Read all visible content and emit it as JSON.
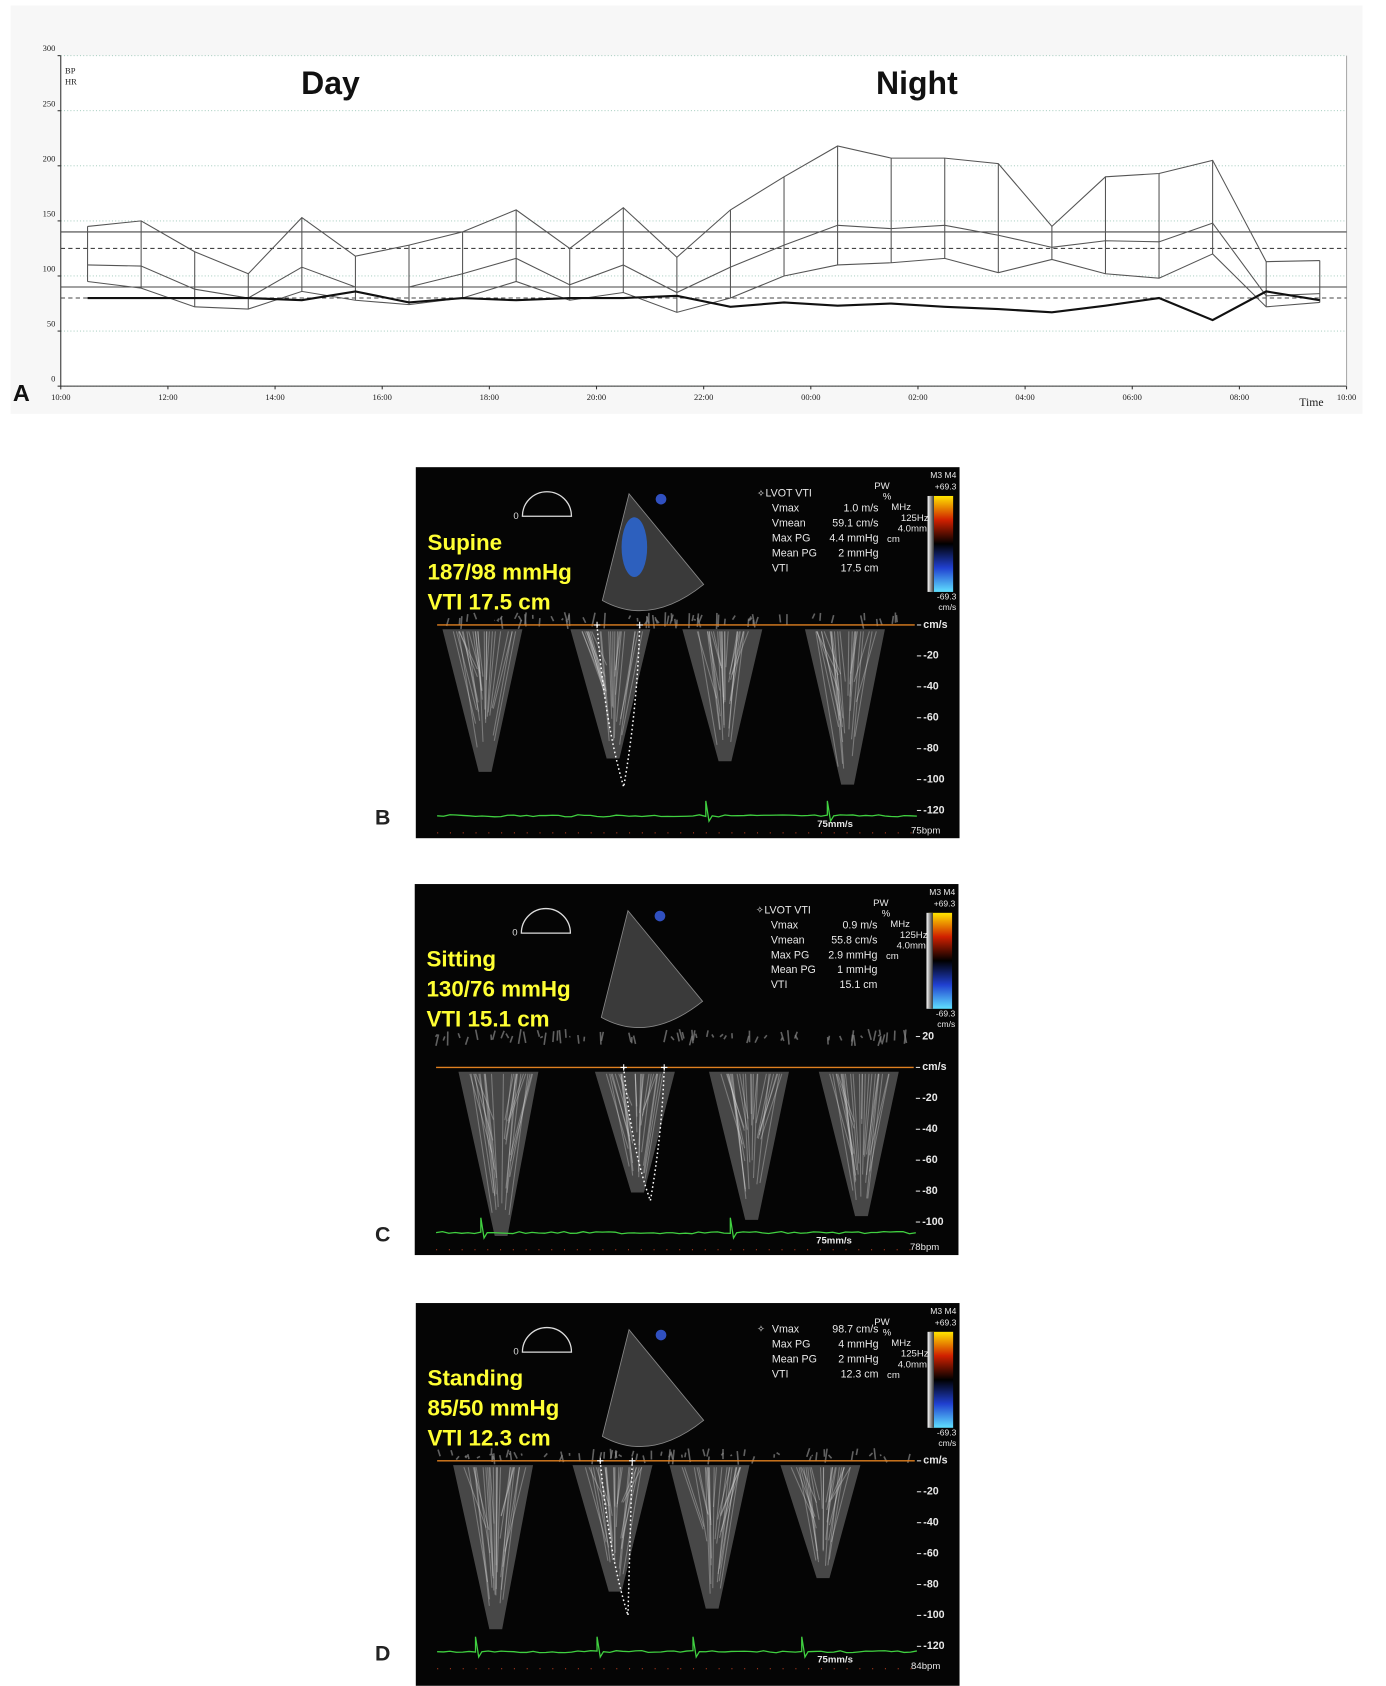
{
  "chart_data": {
    "type": "line",
    "panel_label": "A",
    "annotations": [
      "Day",
      "Night"
    ],
    "y_label": [
      "BP",
      "HR"
    ],
    "x_label": "Time",
    "x": [
      10.5,
      11.5,
      12.5,
      13.5,
      14.5,
      15.5,
      16.5,
      17.5,
      18.5,
      19.5,
      20.5,
      21.5,
      22.5,
      23.5,
      24.5,
      25.5,
      26.5,
      27.5,
      28.5,
      29.5,
      30.5,
      31.5,
      32.5,
      33.5
    ],
    "series": [
      {
        "color": "#555555",
        "line_width": 1,
        "values": [
          145,
          150,
          122,
          102,
          153,
          118,
          128,
          140,
          160,
          125,
          162,
          117,
          160,
          190,
          218,
          207,
          207,
          202,
          145,
          190,
          193,
          205,
          113,
          114
        ]
      },
      {
        "color": "#555555",
        "line_width": 1,
        "values": [
          110,
          109,
          88,
          80,
          108,
          90,
          90,
          102,
          116,
          92,
          110,
          85,
          108,
          128,
          146,
          143,
          146,
          137,
          126,
          132,
          131,
          148,
          82,
          84
        ]
      },
      {
        "color": "#555555",
        "line_width": 1,
        "values": [
          95,
          89,
          72,
          70,
          86,
          78,
          74,
          80,
          95,
          78,
          85,
          67,
          80,
          100,
          110,
          112,
          116,
          103,
          115,
          102,
          98,
          120,
          72,
          76
        ]
      },
      {
        "color": "#111111",
        "line_width": 2,
        "values": [
          80,
          80,
          80,
          80,
          78,
          86,
          76,
          80,
          78,
          80,
          80,
          82,
          72,
          76,
          73,
          75,
          72,
          70,
          67,
          73,
          80,
          60,
          86,
          78
        ]
      }
    ],
    "reference_lines": [
      {
        "value": 140,
        "style": "solid"
      },
      {
        "value": 90,
        "style": "solid"
      },
      {
        "value": 125,
        "style": "dashed"
      },
      {
        "value": 80,
        "style": "dashed"
      }
    ],
    "xlim": [
      10,
      34
    ],
    "ylim": [
      0,
      300
    ],
    "xticks": [
      {
        "value": 10,
        "label": "10:00"
      },
      {
        "value": 12,
        "label": "12:00"
      },
      {
        "value": 14,
        "label": "14:00"
      },
      {
        "value": 16,
        "label": "16:00"
      },
      {
        "value": 18,
        "label": "18:00"
      },
      {
        "value": 20,
        "label": "20:00"
      },
      {
        "value": 22,
        "label": "22:00"
      },
      {
        "value": 24,
        "label": "00:00"
      },
      {
        "value": 26,
        "label": "02:00"
      },
      {
        "value": 28,
        "label": "04:00"
      },
      {
        "value": 30,
        "label": "06:00"
      },
      {
        "value": 32,
        "label": "08:00"
      },
      {
        "value": 34,
        "label": "10:00"
      }
    ],
    "yticks": [
      0,
      50,
      100,
      150,
      200,
      250,
      300
    ],
    "grid": true
  },
  "panels": [
    {
      "label": "B",
      "position": "Supine",
      "bp": "187/98 mmHg",
      "vti": "VTI 17.5 cm",
      "heading": "LVOT VTI",
      "measurements": [
        {
          "name": "Vmax",
          "value": "1.0 m/s"
        },
        {
          "name": "Vmean",
          "value": "59.1 cm/s"
        },
        {
          "name": "Max PG",
          "value": "4.4 mmHg"
        },
        {
          "name": "Mean PG",
          "value": "2 mmHg"
        },
        {
          "name": "VTI",
          "value": "17.5 cm"
        }
      ],
      "probe": [
        "PW",
        "%",
        "MHz",
        "125Hz",
        "4.0mm",
        "cm"
      ],
      "color_bar": [
        "M3 M4",
        "+69.3",
        "-69.3",
        "cm/s"
      ],
      "scale": [
        "cm/s",
        "-20",
        "-40",
        "-60",
        "-80",
        "-100",
        "-120"
      ],
      "speed": "75mm/s",
      "rate": "75bpm"
    },
    {
      "label": "C",
      "position": "Sitting",
      "bp": "130/76 mmHg",
      "vti": "VTI 15.1 cm",
      "heading": "LVOT VTI",
      "measurements": [
        {
          "name": "Vmax",
          "value": "0.9 m/s"
        },
        {
          "name": "Vmean",
          "value": "55.8 cm/s"
        },
        {
          "name": "Max PG",
          "value": "2.9 mmHg"
        },
        {
          "name": "Mean PG",
          "value": "1 mmHg"
        },
        {
          "name": "VTI",
          "value": "15.1 cm"
        }
      ],
      "probe": [
        "PW",
        "%",
        "MHz",
        "125Hz",
        "4.0mm",
        "cm"
      ],
      "color_bar": [
        "M3 M4",
        "+69.3",
        "-69.3",
        "cm/s"
      ],
      "scale": [
        "20",
        "cm/s",
        "-20",
        "-40",
        "-60",
        "-80",
        "-100"
      ],
      "speed": "75mm/s",
      "rate": "78bpm"
    },
    {
      "label": "D",
      "position": "Standing",
      "bp": "85/50 mmHg",
      "vti": "VTI 12.3 cm",
      "measurements": [
        {
          "name": "Vmax",
          "value": "98.7 cm/s"
        },
        {
          "name": "Max PG",
          "value": "4 mmHg"
        },
        {
          "name": "Mean PG",
          "value": "2 mmHg"
        },
        {
          "name": "VTI",
          "value": "12.3 cm"
        }
      ],
      "probe": [
        "PW",
        "%",
        "MHz",
        "125Hz",
        "4.0mm",
        "cm"
      ],
      "color_bar": [
        "M3 M4",
        "+69.3",
        "-69.3",
        "cm/s"
      ],
      "scale": [
        "cm/s",
        "-20",
        "-40",
        "-60",
        "-80",
        "-100",
        "-120"
      ],
      "speed": "75mm/s",
      "rate": "84bpm"
    }
  ]
}
